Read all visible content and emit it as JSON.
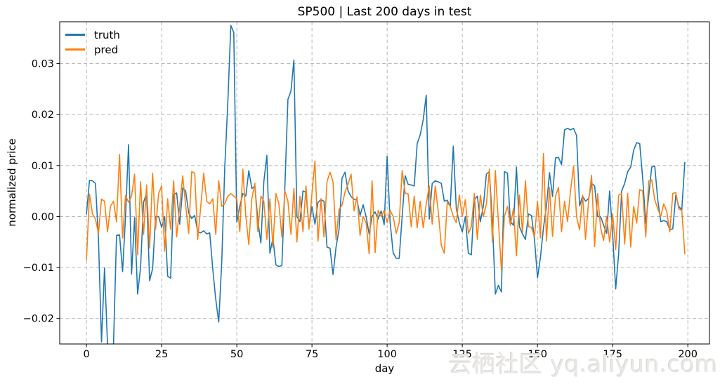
{
  "watermark": {
    "text": "云栖社区 yq.aliyun.com"
  },
  "chart_data": {
    "type": "line",
    "title": "SP500 | Last 200 days in test",
    "xlabel": "day",
    "ylabel": "normalized price",
    "grid": true,
    "legend_position": "upper left",
    "xlim": [
      -8.9,
      207.2
    ],
    "ylim": [
      -0.025,
      0.0382
    ],
    "x_ticks": {
      "values": [
        0,
        25,
        50,
        75,
        100,
        125,
        150,
        175,
        200
      ],
      "labels": [
        "0",
        "25",
        "50",
        "75",
        "100",
        "125",
        "150",
        "175",
        "200"
      ]
    },
    "y_ticks": {
      "values": [
        -0.02,
        -0.01,
        0.0,
        0.01,
        0.02,
        0.03
      ],
      "labels": [
        "−0.02",
        "−0.01",
        "0.00",
        "0.01",
        "0.02",
        "0.03"
      ]
    },
    "x": [
      0,
      1,
      2,
      3,
      4,
      5,
      6,
      7,
      8,
      9,
      10,
      11,
      12,
      13,
      14,
      15,
      16,
      17,
      18,
      19,
      20,
      21,
      22,
      23,
      24,
      25,
      26,
      27,
      28,
      29,
      30,
      31,
      32,
      33,
      34,
      35,
      36,
      37,
      38,
      39,
      40,
      41,
      42,
      43,
      44,
      45,
      46,
      47,
      48,
      49,
      50,
      51,
      52,
      53,
      54,
      55,
      56,
      57,
      58,
      59,
      60,
      61,
      62,
      63,
      64,
      65,
      66,
      67,
      68,
      69,
      70,
      71,
      72,
      73,
      74,
      75,
      76,
      77,
      78,
      79,
      80,
      81,
      82,
      83,
      84,
      85,
      86,
      87,
      88,
      89,
      90,
      91,
      92,
      93,
      94,
      95,
      96,
      97,
      98,
      99,
      100,
      101,
      102,
      103,
      104,
      105,
      106,
      107,
      108,
      109,
      110,
      111,
      112,
      113,
      114,
      115,
      116,
      117,
      118,
      119,
      120,
      121,
      122,
      123,
      124,
      125,
      126,
      127,
      128,
      129,
      130,
      131,
      132,
      133,
      134,
      135,
      136,
      137,
      138,
      139,
      140,
      141,
      142,
      143,
      144,
      145,
      146,
      147,
      148,
      149,
      150,
      151,
      152,
      153,
      154,
      155,
      156,
      157,
      158,
      159,
      160,
      161,
      162,
      163,
      164,
      165,
      166,
      167,
      168,
      169,
      170,
      171,
      172,
      173,
      174,
      175,
      176,
      177,
      178,
      179,
      180,
      181,
      182,
      183,
      184,
      185,
      186,
      187,
      188,
      189,
      190,
      191,
      192,
      193,
      194,
      195,
      196,
      197,
      198,
      199
    ],
    "series": [
      {
        "name": "truth",
        "color": "#1f77b4",
        "values": [
          0.0005,
          0.0071,
          0.007,
          0.0065,
          -0.0045,
          -0.0246,
          -0.0101,
          -0.0252,
          -0.0251,
          -0.025,
          -0.0037,
          -0.0036,
          -0.0108,
          0.0,
          0.0141,
          -0.0113,
          -0.0002,
          -0.0152,
          -0.01,
          0.0028,
          0.0046,
          -0.0126,
          -0.0102,
          0.0,
          0.0,
          -0.0021,
          0.0,
          -0.0117,
          -0.0121,
          0.0044,
          0.0046,
          -0.0015,
          0.0056,
          0.005,
          0.0007,
          -0.0004,
          0.0002,
          -0.003,
          -0.0032,
          -0.0028,
          -0.0034,
          -0.0032,
          -0.0103,
          -0.0163,
          -0.0207,
          -0.0088,
          0.0097,
          0.0223,
          0.0375,
          0.0361,
          -0.0011,
          0.002,
          0.0045,
          0.004,
          0.009,
          0.0055,
          0.006,
          -0.0008,
          -0.0052,
          0.0068,
          0.012,
          -0.0072,
          -0.0043,
          -0.0095,
          -0.0098,
          -0.0096,
          0.006,
          0.023,
          0.0246,
          0.0307,
          0.0,
          -0.001,
          0.005,
          0.0048,
          -0.002,
          0.002,
          -0.0015,
          0.0028,
          0.0033,
          0.003,
          -0.006,
          -0.0062,
          -0.0114,
          -0.006,
          -0.0025,
          0.0075,
          0.0087,
          0.005,
          0.0039,
          0.0034,
          0.0032,
          0.0002,
          0.0023,
          0.0,
          -0.0034,
          0.0,
          0.0009,
          -0.0005,
          0.0011,
          -0.0016,
          0.0118,
          -0.0012,
          -0.0071,
          -0.0082,
          -0.0082,
          0.0,
          0.008,
          0.0063,
          0.0062,
          0.006,
          0.0143,
          0.016,
          0.019,
          0.0238,
          -0.0005,
          0.0065,
          0.007,
          0.0068,
          0.0065,
          0.003,
          0.0032,
          0.002,
          0.0138,
          0.0015,
          -0.0012,
          -0.003,
          0.0,
          -0.0072,
          -0.0075,
          0.0033,
          0.004,
          -0.001,
          0.002,
          0.0083,
          0.0088,
          -0.001,
          -0.0152,
          -0.0135,
          -0.0148,
          0.0088,
          0.0085,
          -0.001,
          -0.0017,
          0.0097,
          -0.002,
          -0.0034,
          -0.0045,
          0.0005,
          0.0002,
          -0.0045,
          -0.012,
          -0.008,
          -0.0022,
          0.0021,
          0.0086,
          0.0039,
          0.0115,
          0.0116,
          0.0102,
          0.017,
          0.0173,
          0.017,
          0.0173,
          0.0159,
          0.0021,
          0.004,
          0.003,
          0.0035,
          0.0065,
          0.006,
          0.0,
          0.0,
          -0.0017,
          -0.0033,
          0.005,
          -0.0035,
          -0.0142,
          -0.0073,
          0.005,
          0.0065,
          0.0088,
          0.0097,
          0.013,
          0.0145,
          0.0143,
          0.0074,
          -0.0013,
          0.004,
          0.0097,
          0.0099,
          0.0033,
          -0.001,
          -0.0008,
          -0.001,
          -0.0026,
          -0.0024,
          0.0042,
          0.002,
          0.0013,
          0.0106
        ]
      },
      {
        "name": "pred",
        "color": "#ff7f0e",
        "values": [
          -0.0085,
          0.0044,
          0.0005,
          -0.0005,
          -0.0033,
          0.0034,
          0.003,
          -0.003,
          0.002,
          0.003,
          -0.001,
          0.0122,
          -0.0042,
          0.0041,
          0.0028,
          0.004,
          0.0083,
          -0.0075,
          0.0068,
          -0.0035,
          0.0062,
          -0.0062,
          0.0085,
          -0.0025,
          0.0045,
          0.006,
          -0.0068,
          0.0035,
          -0.0025,
          0.007,
          -0.004,
          0.002,
          0.008,
          0.0022,
          -0.0033,
          0.0088,
          0.0085,
          -0.0045,
          0.002,
          0.0085,
          0.003,
          0.0025,
          0.0035,
          -0.0035,
          0.007,
          0.002,
          0.0025,
          0.004,
          0.0045,
          0.004,
          0.0035,
          -0.003,
          0.0093,
          0.0,
          -0.0055,
          0.0035,
          0.0065,
          -0.003,
          0.004,
          0.003,
          -0.0045,
          0.0035,
          -0.006,
          0.0045,
          0.0025,
          -0.004,
          0.005,
          0.003,
          -0.0035,
          0.0055,
          -0.005,
          0.004,
          -0.003,
          0.006,
          -0.0025,
          0.0045,
          0.0109,
          -0.0048,
          0.0035,
          -0.004,
          0.0068,
          0.0087,
          0.0068,
          -0.0045,
          0.0014,
          0.0022,
          0.0048,
          0.0064,
          0.0083,
          0.0011,
          0.0039,
          -0.0037,
          0.0,
          -0.0012,
          -0.0073,
          0.007,
          -0.0071,
          0.0012,
          0.0,
          0.0012,
          -0.0012,
          0.0012,
          0.0,
          -0.0033,
          -0.0012,
          0.009,
          0.0046,
          0.0044,
          -0.002,
          0.004,
          -0.0022,
          0.003,
          -0.0022,
          0.0025,
          0.006,
          -0.0015,
          0.006,
          0.001,
          -0.0056,
          -0.0072,
          0.0028,
          0.002,
          0.0,
          -0.0012,
          0.0042,
          0.0,
          0.0033,
          -0.0033,
          -0.002,
          0.0045,
          -0.0045,
          0.0042,
          0.0,
          0.0024,
          0.0093,
          -0.005,
          0.009,
          -0.001,
          -0.0105,
          0.0,
          0.002,
          -0.0017,
          0.0015,
          -0.0077,
          0.0042,
          -0.003,
          0.007,
          -0.002,
          -0.0021,
          -0.004,
          0.003,
          -0.0042,
          0.0124,
          -0.0048,
          0.0057,
          -0.0039,
          0.004,
          0.0057,
          -0.003,
          0.003,
          -0.001,
          0.005,
          0.0099,
          0.0,
          -0.0026,
          0.0042,
          -0.0045,
          0.003,
          0.0081,
          -0.0059,
          0.0045,
          -0.0022,
          -0.0047,
          0.0,
          -0.005,
          0.0005,
          -0.0065,
          0.0042,
          0.0045,
          -0.0054,
          0.0045,
          -0.006,
          0.002,
          -0.0013,
          0.0053,
          0.005,
          -0.004,
          0.007,
          0.0072,
          0.0033,
          0.0015,
          0.0,
          0.0025,
          0.001,
          -0.003,
          0.0045,
          0.0047,
          0.0015,
          0.0012,
          -0.0073
        ]
      }
    ]
  }
}
